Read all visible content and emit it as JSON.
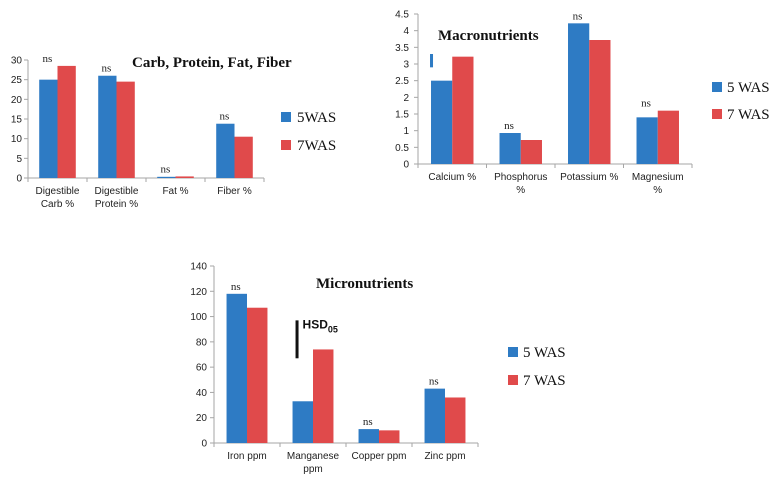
{
  "colors": {
    "series1": "#2e7bc4",
    "series2": "#e04a4b",
    "axis": "#a6a6a6",
    "errbar": "#111111",
    "ci_bar": "#2e7bc4"
  },
  "chart_data": [
    {
      "id": "c1",
      "type": "bar",
      "title": "Carb, Protein, Fat, Fiber",
      "categories": [
        [
          "Digestible",
          "Carb %"
        ],
        [
          "Digestible",
          "Protein %"
        ],
        [
          "Fat %"
        ],
        [
          "Fiber %"
        ]
      ],
      "series": [
        {
          "name": "5WAS",
          "values": [
            25,
            26,
            0.3,
            13.8
          ]
        },
        {
          "name": "7WAS",
          "values": [
            28.5,
            24.5,
            0.4,
            10.5
          ]
        }
      ],
      "ylim": [
        0,
        30
      ],
      "yticks": [
        0,
        5,
        10,
        15,
        20,
        25,
        30
      ],
      "annotations": [
        "ns",
        "ns",
        "ns",
        "ns"
      ]
    },
    {
      "id": "c2",
      "type": "bar",
      "title": "Macronutrients",
      "categories": [
        [
          "Calcium %"
        ],
        [
          "Phosphorus",
          "%"
        ],
        [
          "Potassium %"
        ],
        [
          "Magnesium",
          "%"
        ]
      ],
      "series": [
        {
          "name": "5 WAS",
          "values": [
            2.5,
            0.93,
            4.22,
            1.4
          ]
        },
        {
          "name": "7 WAS",
          "values": [
            3.22,
            0.72,
            3.72,
            1.6
          ]
        }
      ],
      "ylim": [
        0,
        4.5
      ],
      "yticks": [
        "0",
        "0.5",
        "1",
        "1.5",
        "2",
        "2.5",
        "3",
        "3.5",
        "4",
        "4.5"
      ],
      "annotations": [
        "",
        "ns",
        "ns",
        "ns"
      ],
      "ci_bar": {
        "category": 0,
        "low": 2.9,
        "high": 3.3
      }
    },
    {
      "id": "c3",
      "type": "bar",
      "title": "Micronutrients",
      "categories": [
        [
          "Iron ppm"
        ],
        [
          "Manganese",
          "ppm"
        ],
        [
          "Copper ppm"
        ],
        [
          "Zinc ppm"
        ]
      ],
      "series": [
        {
          "name": "5 WAS",
          "values": [
            118,
            33,
            11,
            43
          ]
        },
        {
          "name": "7 WAS",
          "values": [
            107,
            74,
            10,
            36
          ]
        }
      ],
      "ylim": [
        0,
        140
      ],
      "yticks": [
        0,
        20,
        40,
        60,
        80,
        100,
        120,
        140
      ],
      "annotations": [
        "ns",
        "",
        "ns",
        "ns"
      ],
      "hsd": {
        "label": "HSD",
        "subscript": "05",
        "category": 1,
        "low": 67,
        "high": 97
      }
    }
  ]
}
